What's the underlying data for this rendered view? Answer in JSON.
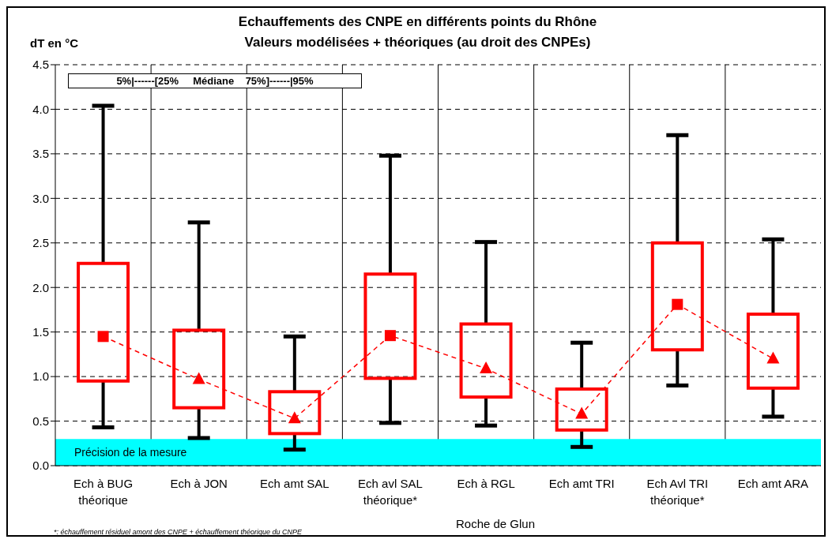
{
  "chart_data": {
    "type": "box",
    "title": "Echauffements des CNPE en différents points du Rhône",
    "subtitle": "Valeurs modélisées + théoriques (au droit des CNPEs)",
    "ylabel": "dT en °C",
    "categories": [
      "Ech à BUG\nthéorique",
      "Ech à JON",
      "Ech amt SAL",
      "Ech avl SAL\nthéorique*",
      "Ech à RGL",
      "Ech amt TRI",
      "Ech Avl TRI\nthéorique*",
      "Ech amt ARA"
    ],
    "series": [
      {
        "type": "box",
        "color": "#ff0000",
        "marker": "square",
        "boxes": [
          {
            "low": 0.43,
            "q1": 0.95,
            "median": 1.45,
            "q3": 2.27,
            "high": 4.04
          },
          null,
          null,
          {
            "low": 0.48,
            "q1": 0.98,
            "median": 1.46,
            "q3": 2.15,
            "high": 3.48
          },
          null,
          null,
          {
            "low": 0.9,
            "q1": 1.3,
            "median": 1.81,
            "q3": 2.5,
            "high": 3.71
          },
          null
        ]
      },
      {
        "type": "box",
        "color": "#ff0000",
        "marker": "triangle",
        "boxes": [
          null,
          {
            "low": 0.31,
            "q1": 0.65,
            "median": 0.97,
            "q3": 1.52,
            "high": 2.73
          },
          {
            "low": 0.18,
            "q1": 0.36,
            "median": 0.53,
            "q3": 0.83,
            "high": 1.45
          },
          null,
          {
            "low": 0.45,
            "q1": 0.77,
            "median": 1.09,
            "q3": 1.59,
            "high": 2.51
          },
          {
            "low": 0.21,
            "q1": 0.4,
            "median": 0.58,
            "q3": 0.86,
            "high": 1.38
          },
          null,
          {
            "low": 0.55,
            "q1": 0.87,
            "median": 1.2,
            "q3": 1.7,
            "high": 2.54
          }
        ]
      },
      {
        "type": "line",
        "color": "#ff0000",
        "line_style": "dashed",
        "marker": "none",
        "values": [
          1.45,
          0.97,
          0.53,
          1.46,
          1.09,
          0.58,
          1.81,
          1.2
        ]
      }
    ],
    "ylim": [
      0,
      4.5
    ],
    "yticks": [
      {
        "value": 0,
        "label": "0.0"
      },
      {
        "value": 0.5,
        "label": "0.5"
      },
      {
        "value": 1,
        "label": "1.0"
      },
      {
        "value": 1.5,
        "label": "1.5"
      },
      {
        "value": 2,
        "label": "2.0"
      },
      {
        "value": 2.5,
        "label": "2.5"
      },
      {
        "value": 3,
        "label": "3.0"
      },
      {
        "value": 3.5,
        "label": "3.5"
      },
      {
        "value": 4,
        "label": "4.0"
      },
      {
        "value": 4.5,
        "label": "4.5"
      }
    ],
    "bands": [
      {
        "axis": "y",
        "from": 0,
        "to": 0.3,
        "label": "Précision de la mesure",
        "color": "#00ffff"
      }
    ],
    "grid": true,
    "annotations": [
      "5%|------[25%     Médiane    75%]------|95%",
      "Roche de Glun",
      "*: échauffement résiduel amont des CNPE + échauffement théorique du CNPE"
    ]
  }
}
